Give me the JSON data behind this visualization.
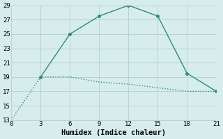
{
  "xlabel": "Humidex (Indice chaleur)",
  "line1": {
    "x": [
      0,
      3,
      6,
      9,
      12,
      15,
      18,
      21
    ],
    "y": [
      13,
      19,
      19,
      18.3,
      18,
      17.5,
      17,
      17
    ],
    "color": "#2e8b7a",
    "linestyle": "dotted",
    "linewidth": 1.0
  },
  "line2": {
    "x": [
      3,
      6,
      9,
      12,
      15,
      18,
      21
    ],
    "y": [
      19,
      25,
      27.5,
      29,
      27.5,
      19.5,
      17
    ],
    "color": "#2e8b7a",
    "linestyle": "solid",
    "linewidth": 1.0,
    "marker": "o",
    "markersize": 2.5
  },
  "xlim": [
    0,
    21
  ],
  "ylim": [
    13,
    29
  ],
  "xticks": [
    0,
    3,
    6,
    9,
    12,
    15,
    18,
    21
  ],
  "yticks": [
    13,
    15,
    17,
    19,
    21,
    23,
    25,
    27,
    29
  ],
  "background_color": "#d6edec",
  "grid_color": "#b8d4d2",
  "tick_fontsize": 6.5,
  "label_fontsize": 7.5
}
